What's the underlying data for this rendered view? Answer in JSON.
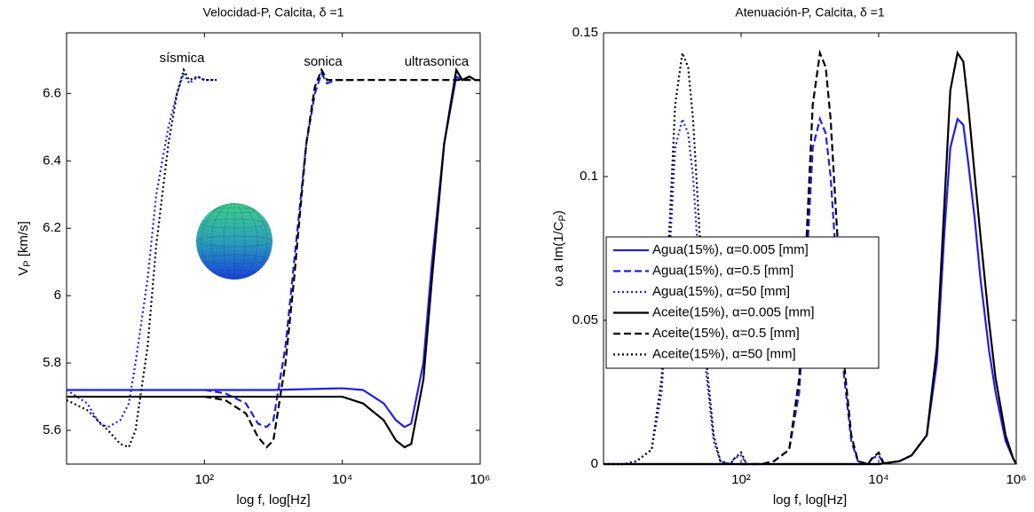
{
  "chart_data": [
    {
      "type": "line",
      "title": "Velocidad-P, Calcita, δ =1",
      "x_label": "log f, log[Hz]",
      "y_label": {
        "text": "V",
        "subscript": "P",
        "suffix": " [km/s]"
      },
      "xscale": "log",
      "xlim": [
        1,
        1000000
      ],
      "xticks": [
        {
          "value": 100,
          "label": "10²"
        },
        {
          "value": 10000,
          "label": "10⁴"
        },
        {
          "value": 1000000,
          "label": "10⁶"
        }
      ],
      "ylim": [
        5.5,
        6.78
      ],
      "yticks": [
        5.6,
        5.8,
        6,
        6.2,
        6.4,
        6.6
      ],
      "annotations": [
        "sísmica",
        "sonica",
        "ultrasonica"
      ],
      "series": [
        {
          "color": "#1f1fe6",
          "dash": "solid",
          "x": [
            1,
            1000,
            10000,
            20000,
            40000,
            60000,
            80000,
            100000,
            150000,
            200000,
            300000,
            450000,
            550000,
            700000,
            850000,
            1000000
          ],
          "values": [
            5.72,
            5.72,
            5.725,
            5.72,
            5.68,
            5.63,
            5.61,
            5.62,
            5.8,
            6.1,
            6.45,
            6.65,
            6.64,
            6.65,
            6.64,
            6.64
          ]
        },
        {
          "color": "#1f1fe6",
          "dash": "dash",
          "x": [
            100,
            200,
            400,
            600,
            800,
            1000,
            1500,
            2000,
            3000,
            4000,
            5000,
            6000,
            8000,
            10000,
            15000
          ],
          "values": [
            5.72,
            5.71,
            5.68,
            5.62,
            5.61,
            5.63,
            5.85,
            6.1,
            6.45,
            6.6,
            6.66,
            6.63,
            6.64,
            6.64,
            6.64
          ]
        },
        {
          "color": "#1f1fe6",
          "dash": "dot",
          "x": [
            1,
            2,
            3,
            4,
            6,
            8,
            10,
            15,
            20,
            30,
            40,
            50,
            60,
            80,
            100,
            150
          ],
          "values": [
            5.72,
            5.68,
            5.62,
            5.61,
            5.63,
            5.68,
            5.8,
            6.05,
            6.3,
            6.5,
            6.6,
            6.66,
            6.63,
            6.65,
            6.64,
            6.64
          ]
        },
        {
          "color": "#000000",
          "dash": "solid",
          "x": [
            1,
            10000,
            20000,
            40000,
            60000,
            80000,
            100000,
            150000,
            200000,
            300000,
            450000,
            550000,
            700000,
            850000,
            1000000
          ],
          "values": [
            5.7,
            5.7,
            5.68,
            5.63,
            5.57,
            5.55,
            5.56,
            5.75,
            6.05,
            6.45,
            6.67,
            6.64,
            6.65,
            6.64,
            6.64
          ]
        },
        {
          "color": "#000000",
          "dash": "dash",
          "x": [
            100,
            200,
            400,
            600,
            800,
            1000,
            1500,
            2000,
            3000,
            4000,
            5000,
            6000,
            8000,
            10000,
            1000000
          ],
          "values": [
            5.7,
            5.69,
            5.65,
            5.58,
            5.55,
            5.57,
            5.8,
            6.05,
            6.45,
            6.62,
            6.67,
            6.64,
            6.64,
            6.64,
            6.64
          ]
        },
        {
          "color": "#000000",
          "dash": "dot",
          "x": [
            1,
            2,
            4,
            6,
            8,
            10,
            15,
            20,
            30,
            40,
            50,
            60,
            80,
            100,
            150
          ],
          "values": [
            5.69,
            5.66,
            5.6,
            5.56,
            5.55,
            5.6,
            5.85,
            6.15,
            6.45,
            6.6,
            6.67,
            6.64,
            6.65,
            6.64,
            6.64
          ]
        }
      ]
    },
    {
      "type": "line",
      "title": "Atenuación-P, Calcita, δ =1",
      "x_label": "log f, log[Hz]",
      "y_label": {
        "text": "ω a Im(1/C",
        "subscript": "P",
        "suffix": ")"
      },
      "xscale": "log",
      "xlim": [
        1,
        1000000
      ],
      "xticks": [
        {
          "value": 100,
          "label": "10²"
        },
        {
          "value": 10000,
          "label": "10⁴"
        },
        {
          "value": 1000000,
          "label": "10⁶"
        }
      ],
      "ylim": [
        0,
        0.15
      ],
      "yticks": [
        0,
        0.05,
        0.1,
        0.15
      ],
      "legend": "center-left",
      "series": [
        {
          "name": "Agua(15%), α=0.005 [mm]",
          "color": "#1f1fe6",
          "dash": "solid",
          "x": [
            1,
            10000,
            20000,
            30000,
            50000,
            70000,
            90000,
            110000,
            140000,
            170000,
            200000,
            250000,
            300000,
            400000,
            500000,
            700000,
            900000,
            1000000
          ],
          "values": [
            0,
            0,
            0.001,
            0.003,
            0.01,
            0.035,
            0.08,
            0.11,
            0.12,
            0.118,
            0.105,
            0.085,
            0.065,
            0.04,
            0.025,
            0.008,
            0.002,
            0
          ]
        },
        {
          "name": "Agua(15%), α=0.5 [mm]",
          "color": "#1f1fe6",
          "dash": "dash",
          "x": [
            100,
            200,
            300,
            500,
            700,
            900,
            1100,
            1400,
            1700,
            2000,
            2500,
            3000,
            4000,
            5000,
            7000,
            8000,
            10000,
            12000
          ],
          "values": [
            0,
            0,
            0.001,
            0.005,
            0.025,
            0.07,
            0.11,
            0.12,
            0.115,
            0.1,
            0.065,
            0.035,
            0.008,
            0.001,
            0,
            0.002,
            0.003,
            0
          ]
        },
        {
          "name": "Agua(15%), α=50 [mm]",
          "color": "#1f1fe6",
          "dash": "dot",
          "x": [
            1,
            2,
            3,
            5,
            7,
            9,
            11,
            14,
            17,
            20,
            25,
            30,
            40,
            50,
            70,
            80,
            100,
            120
          ],
          "values": [
            0,
            0,
            0.001,
            0.005,
            0.025,
            0.07,
            0.11,
            0.12,
            0.115,
            0.1,
            0.065,
            0.035,
            0.008,
            0.001,
            0,
            0.002,
            0.003,
            0
          ]
        },
        {
          "name": "Aceite(15%), α=0.005 [mm]",
          "color": "#000000",
          "dash": "solid",
          "x": [
            1,
            10000,
            20000,
            30000,
            50000,
            70000,
            90000,
            110000,
            140000,
            170000,
            200000,
            250000,
            300000,
            400000,
            500000,
            700000,
            900000,
            1000000
          ],
          "values": [
            0,
            0,
            0.001,
            0.003,
            0.01,
            0.04,
            0.09,
            0.13,
            0.143,
            0.14,
            0.125,
            0.1,
            0.08,
            0.05,
            0.03,
            0.01,
            0.002,
            0
          ]
        },
        {
          "name": "Aceite(15%), α=0.5 [mm]",
          "color": "#000000",
          "dash": "dash",
          "x": [
            100,
            200,
            300,
            500,
            700,
            900,
            1100,
            1400,
            1700,
            2000,
            2500,
            3000,
            4000,
            5000,
            7000,
            8000,
            10000,
            12000
          ],
          "values": [
            0,
            0,
            0.001,
            0.005,
            0.03,
            0.08,
            0.125,
            0.143,
            0.138,
            0.12,
            0.08,
            0.04,
            0.01,
            0.001,
            0,
            0.002,
            0.004,
            0
          ]
        },
        {
          "name": "Aceite(15%), α=50 [mm]",
          "color": "#000000",
          "dash": "dot",
          "x": [
            1,
            2,
            3,
            5,
            7,
            9,
            11,
            14,
            17,
            20,
            25,
            30,
            40,
            50,
            70,
            80,
            100,
            120
          ],
          "values": [
            0,
            0,
            0.001,
            0.005,
            0.03,
            0.08,
            0.125,
            0.143,
            0.138,
            0.12,
            0.08,
            0.04,
            0.01,
            0.001,
            0,
            0.002,
            0.004,
            0
          ]
        }
      ]
    }
  ]
}
